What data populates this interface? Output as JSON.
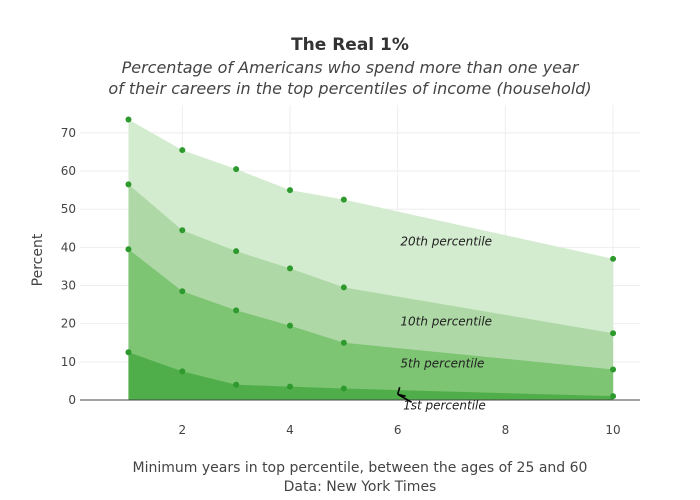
{
  "chart_data": {
    "type": "area",
    "title": "The Real 1%",
    "subtitle_lines": [
      "Percentage of Americans who spend more than one year",
      "of their careers in the top percentiles of income (household)"
    ],
    "xlabel_lines": [
      "Minimum years in top percentile, between the ages of 25 and 60",
      "Data: New York Times"
    ],
    "ylabel": "Percent",
    "x": [
      1,
      2,
      3,
      4,
      5,
      10
    ],
    "xlim": [
      0.1,
      10.5
    ],
    "ylim": [
      0,
      76
    ],
    "xticks": [
      2,
      4,
      6,
      8,
      10
    ],
    "yticks": [
      0,
      10,
      20,
      30,
      40,
      50,
      60,
      70
    ],
    "grid": true,
    "series": [
      {
        "name": "20th percentile",
        "values": [
          73.5,
          65.5,
          60.5,
          55,
          52.5,
          37
        ],
        "color": "#d3ebcf",
        "label_x": 6.05,
        "label_y": 40.5
      },
      {
        "name": "10th percentile",
        "values": [
          56.5,
          44.5,
          39,
          34.5,
          29.5,
          17.5
        ],
        "color": "#aed9a6",
        "label_x": 6.05,
        "label_y": 19.5
      },
      {
        "name": "5th percentile",
        "values": [
          39.5,
          28.5,
          23.5,
          19.5,
          15,
          8
        ],
        "color": "#7dc473",
        "label_x": 6.05,
        "label_y": 8.5
      },
      {
        "name": "1st percentile",
        "values": [
          12.5,
          7.5,
          4,
          3.5,
          3,
          1
        ],
        "color": "#50ae4a",
        "label_x": 6.1,
        "label_y": -2.5,
        "arrow": true
      }
    ],
    "marker_color": "#2e9a2e"
  }
}
